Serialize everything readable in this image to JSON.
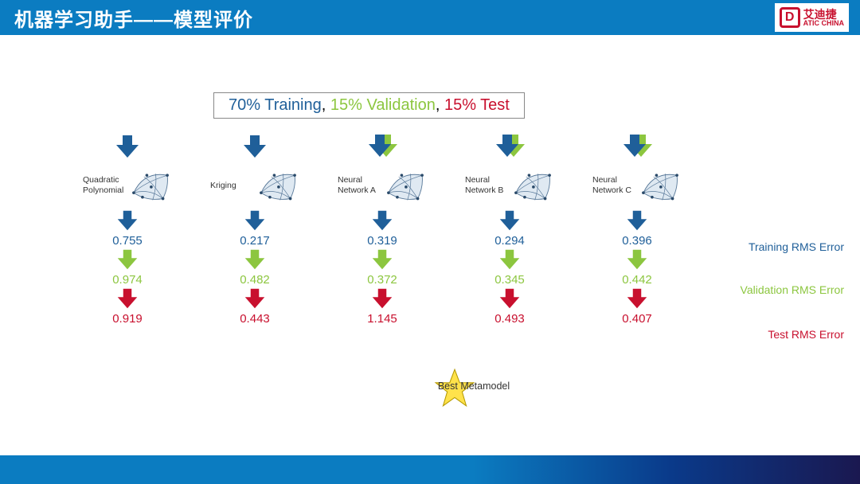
{
  "header": {
    "title": "机器学习助手——模型评价"
  },
  "logo": {
    "cn": "艾迪捷",
    "en": "ATIC CHINA",
    "mark": "D"
  },
  "colors": {
    "train": "#1f5f99",
    "validation": "#8cc63f",
    "test": "#c8102e",
    "headerbg": "#0b7cc1"
  },
  "split": {
    "train_text": "70% Training",
    "validation_text": "15% Validation",
    "test_text": "15% Test",
    "sep": ", "
  },
  "legend": {
    "train": "Training RMS Error",
    "validation": "Validation RMS Error",
    "test": "Test RMS Error"
  },
  "models": [
    {
      "label_line1": "Quadratic",
      "label_line2": "Polynomial",
      "double_arrow": false,
      "train": "0.755",
      "validation": "0.974",
      "test": "0.919"
    },
    {
      "label_line1": "Kriging",
      "label_line2": "",
      "double_arrow": false,
      "train": "0.217",
      "validation": "0.482",
      "test": "0.443"
    },
    {
      "label_line1": "Neural",
      "label_line2": "Network A",
      "double_arrow": true,
      "train": "0.319",
      "validation": "0.372",
      "test": "1.145"
    },
    {
      "label_line1": "Neural",
      "label_line2": "Network B",
      "double_arrow": true,
      "train": "0.294",
      "validation": "0.345",
      "test": "0.493"
    },
    {
      "label_line1": "Neural",
      "label_line2": "Network C",
      "double_arrow": true,
      "train": "0.396",
      "validation": "0.442",
      "test": "0.407"
    }
  ],
  "best": {
    "label": "Best Metamodel"
  }
}
